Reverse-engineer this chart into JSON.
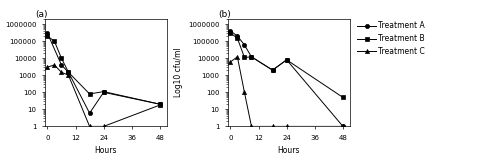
{
  "hours": [
    0,
    3,
    6,
    9,
    18,
    24,
    48
  ],
  "panel_a": {
    "title": "(a)",
    "treatment_A": [
      300000,
      null,
      4000,
      1500,
      6,
      100,
      20
    ],
    "treatment_B": [
      200000,
      100000,
      10000,
      1500,
      80,
      110,
      20
    ],
    "treatment_C": [
      3000,
      4000,
      1500,
      1000,
      1,
      1,
      18
    ]
  },
  "panel_b": {
    "title": "(b)",
    "treatment_A": [
      400000,
      200000,
      60000,
      12000,
      2000,
      8000,
      1
    ],
    "treatment_B": [
      300000,
      150000,
      11000,
      12000,
      2000,
      8000,
      50
    ],
    "treatment_C": [
      6000,
      12000,
      100,
      1,
      1,
      1,
      1
    ]
  },
  "xlabel": "Hours",
  "ylabel": "Log10 cfu/ml",
  "xticks": [
    0,
    12,
    24,
    36,
    48
  ],
  "ylim": [
    1,
    2000000
  ],
  "legend_labels": [
    "Treatment A",
    "Treatment B",
    "Treatment C"
  ],
  "marker_A": "o",
  "marker_B": "s",
  "marker_C": "^",
  "line_color": "black",
  "markersize": 3,
  "fontsize_label": 5.5,
  "fontsize_tick": 5,
  "fontsize_title": 6.5,
  "fontsize_legend": 5.5
}
